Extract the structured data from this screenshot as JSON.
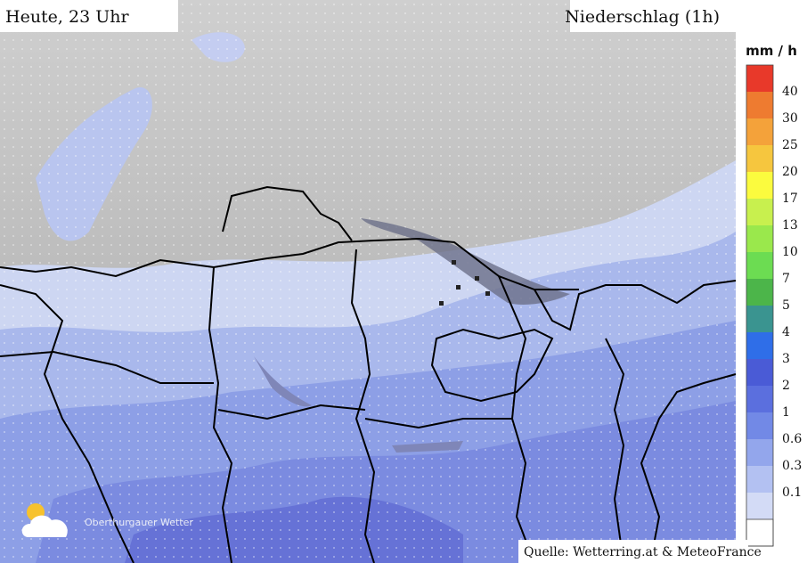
{
  "header": {
    "time_label": "Heute, 23 Uhr",
    "product": "Niederschlag (1h)"
  },
  "legend": {
    "unit": "mm / h",
    "labels": [
      40,
      30,
      25,
      20,
      17,
      13,
      10,
      7,
      5,
      4,
      3,
      2,
      1,
      0.6,
      0.3,
      0.1
    ],
    "colors": [
      "#e8392a",
      "#ee7b30",
      "#f4a23a",
      "#f6c63e",
      "#fbfb3e",
      "#c8f04e",
      "#9ae84c",
      "#6cdc52",
      "#4cb54a",
      "#3a9490",
      "#2f6ee8",
      "#4a5bd6",
      "#5b6fde",
      "#7289e6",
      "#93a6ec",
      "#b3c1f2",
      "#d3dbf6"
    ]
  },
  "logo": {
    "text": "Oberthurgauer Wetter"
  },
  "source": "Quelle: Wetterring.at & MeteoFrance"
}
